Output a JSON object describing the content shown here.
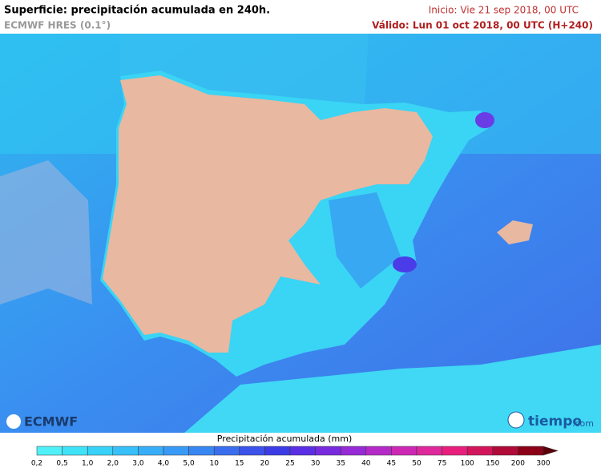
{
  "header": {
    "title": "Superficie: precipitación acumulada en 240h.",
    "model": "ECMWF HRES (0.1°)",
    "init": "Inicio: Vie 21 sep 2018, 00 UTC",
    "valid": "Válido: Lun 01 oct 2018, 00 UTC (H+240)"
  },
  "logos": {
    "left": "ECMWF",
    "right": "tiempo",
    "right_suffix": ".com"
  },
  "colorbar": {
    "title": "Precipitación acumulada (mm)",
    "labels": [
      "0,2",
      "0,5",
      "1,0",
      "2,0",
      "3,0",
      "4,0",
      "5,0",
      "10",
      "15",
      "20",
      "25",
      "30",
      "35",
      "40",
      "45",
      "50",
      "75",
      "100",
      "150",
      "200",
      "300"
    ],
    "colors": [
      "#50f0f8",
      "#40e2f8",
      "#38d2f8",
      "#38c0f8",
      "#38aef8",
      "#389af6",
      "#3886f2",
      "#3a6eee",
      "#3c52ea",
      "#3c3ce6",
      "#5a2ee4",
      "#782ade",
      "#962ad4",
      "#b42ac8",
      "#cc28b4",
      "#de289c",
      "#e81e7c",
      "#d2145a",
      "#b00a38",
      "#8c0018"
    ],
    "arrow_color": "#5a0008"
  }
}
